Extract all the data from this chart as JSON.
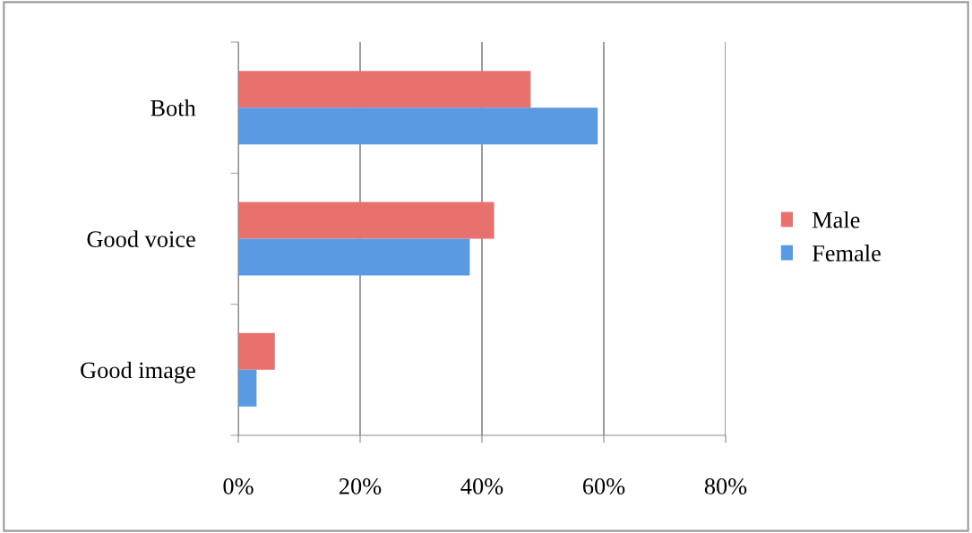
{
  "chart_data": {
    "type": "bar",
    "orientation": "horizontal",
    "categories": [
      "Both",
      "Good voice",
      "Good image"
    ],
    "series": [
      {
        "name": "Male",
        "color": "#e8716d",
        "values": [
          48,
          42,
          6
        ]
      },
      {
        "name": "Female",
        "color": "#5a9ae2",
        "values": [
          59,
          38,
          3
        ]
      }
    ],
    "xlim": [
      0,
      80
    ],
    "xticks": [
      {
        "value": 0,
        "label": "0%"
      },
      {
        "value": 20,
        "label": "20%"
      },
      {
        "value": 40,
        "label": "40%"
      },
      {
        "value": 60,
        "label": "60%"
      },
      {
        "value": 80,
        "label": "80%"
      }
    ],
    "grid": "x",
    "legend": "right"
  }
}
